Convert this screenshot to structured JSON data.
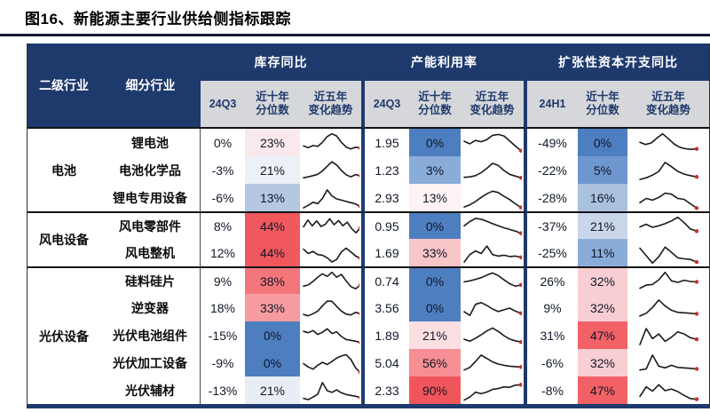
{
  "title": "图16、新能源主要行业供给侧指标跟踪",
  "colors": {
    "header_navy": "#1e3a6d",
    "subheader_bg": "#d6d7da",
    "scale_low_blue": "#4d7ec0",
    "scale_high_red": "#f0555b",
    "spark_stroke": "#1a1a1a",
    "spark_dot": "#cf2b2b",
    "rule_line": "#141a33"
  },
  "header": {
    "secondary_industry": "二级行业",
    "sub_industry": "细分行业",
    "groups": [
      {
        "label": "库存同比",
        "period": "24Q3",
        "percentile_label": "近十年\n分位数",
        "trend_label": "近五年\n变化趋势"
      },
      {
        "label": "产能利用率",
        "period": "24Q3",
        "percentile_label": "近十年\n分位数",
        "trend_label": "近五年\n变化趋势"
      },
      {
        "label": "扩张性资本开支同比",
        "period": "24H1",
        "percentile_label": "近十年\n分位数",
        "trend_label": "近五年\n变化趋势"
      }
    ]
  },
  "industries": [
    {
      "name": "电池",
      "rows": [
        {
          "name": "锂电池",
          "inv": {
            "value": "0%",
            "pct": "23%",
            "pct_color": "#f9e9ec",
            "trend": [
              0.38,
              0.3,
              0.4,
              0.36,
              0.55,
              0.82,
              0.95,
              0.85,
              0.55,
              0.33,
              0.24,
              0.32,
              0.28
            ]
          },
          "cap": {
            "value": "1.95",
            "pct": "0%",
            "pct_color": "#4d7ec0",
            "trend": [
              0.6,
              0.48,
              0.64,
              0.58,
              0.68,
              0.88,
              0.92,
              0.85,
              0.62,
              0.38,
              0.16
            ]
          },
          "capex": {
            "value": "-49%",
            "pct": "0%",
            "pct_color": "#4d7ec0",
            "trend": [
              0.55,
              0.45,
              0.52,
              0.75,
              0.95,
              0.72,
              0.48,
              0.32,
              0.25,
              0.22,
              0.24
            ]
          }
        },
        {
          "name": "电池化学品",
          "inv": {
            "value": "-3%",
            "pct": "21%",
            "pct_color": "#ecf0f7",
            "trend": [
              0.18,
              0.22,
              0.28,
              0.34,
              0.5,
              0.72,
              0.93,
              0.78,
              0.52,
              0.32,
              0.22,
              0.33,
              0.27
            ]
          },
          "cap": {
            "value": "1.23",
            "pct": "3%",
            "pct_color": "#8aacd8",
            "trend": [
              0.2,
              0.22,
              0.28,
              0.42,
              0.62,
              0.86,
              0.76,
              0.52,
              0.34,
              0.26,
              0.18
            ]
          },
          "capex": {
            "value": "-22%",
            "pct": "5%",
            "pct_color": "#6f97cf",
            "trend": [
              0.1,
              0.18,
              0.3,
              0.48,
              0.9,
              0.7,
              0.48,
              0.35,
              0.28,
              0.22
            ]
          }
        },
        {
          "name": "锂电专用设备",
          "inv": {
            "value": "-6%",
            "pct": "13%",
            "pct_color": "#b5c8e2",
            "trend": [
              0.06,
              0.18,
              0.32,
              0.26,
              0.5,
              0.9,
              0.62,
              0.48,
              0.42,
              0.36,
              0.3,
              0.24,
              0.12
            ]
          },
          "cap": {
            "value": "2.93",
            "pct": "13%",
            "pct_color": "#fdf3f4",
            "trend": [
              0.1,
              0.2,
              0.36,
              0.55,
              0.72,
              0.84,
              0.78,
              0.6,
              0.45,
              0.25,
              0.08
            ]
          },
          "capex": {
            "value": "-28%",
            "pct": "16%",
            "pct_color": "#aac1e0",
            "trend": [
              0.3,
              0.5,
              0.42,
              0.55,
              0.75,
              0.7,
              0.5,
              0.46,
              0.25,
              0.05
            ]
          }
        }
      ]
    },
    {
      "name": "风电设备",
      "rows": [
        {
          "name": "风电零部件",
          "inv": {
            "value": "8%",
            "pct": "44%",
            "pct_color": "#f1585e",
            "trend": [
              0.5,
              0.82,
              0.55,
              0.78,
              0.52,
              0.62,
              0.88,
              0.6,
              0.8,
              0.55,
              0.72,
              0.42,
              0.22,
              0.45
            ]
          },
          "cap": {
            "value": "0.95",
            "pct": "0%",
            "pct_color": "#4d7ec0",
            "trend": [
              0.55,
              0.75,
              0.9,
              0.86,
              0.76,
              0.65,
              0.55,
              0.46,
              0.38,
              0.3,
              0.2
            ]
          },
          "capex": {
            "value": "-37%",
            "pct": "21%",
            "pct_color": "#c9d6ea",
            "trend": [
              0.5,
              0.62,
              0.48,
              0.55,
              0.65,
              0.78,
              0.95,
              0.7,
              0.4,
              0.3
            ]
          }
        },
        {
          "name": "风电整机",
          "inv": {
            "value": "12%",
            "pct": "44%",
            "pct_color": "#f1585e",
            "trend": [
              0.7,
              0.5,
              0.6,
              0.45,
              0.42,
              0.3,
              0.1,
              0.22,
              0.58,
              0.75,
              0.58,
              0.38,
              0.28
            ]
          },
          "cap": {
            "value": "1.69",
            "pct": "33%",
            "pct_color": "#f8c5c9",
            "trend": [
              0.1,
              0.45,
              0.62,
              0.5,
              0.85,
              0.45,
              0.38,
              0.42,
              0.36,
              0.38,
              0.32
            ]
          },
          "capex": {
            "value": "-25%",
            "pct": "11%",
            "pct_color": "#8aacd8",
            "trend": [
              0.75,
              0.4,
              0.05,
              0.35,
              0.8,
              0.55,
              0.3,
              0.25,
              0.22,
              0.1
            ]
          }
        }
      ]
    },
    {
      "name": "光伏设备",
      "rows": [
        {
          "name": "硅料硅片",
          "inv": {
            "value": "9%",
            "pct": "38%",
            "pct_color": "#f3767b",
            "trend": [
              0.3,
              0.36,
              0.52,
              0.72,
              0.88,
              0.76,
              0.95,
              0.72,
              0.85,
              0.55,
              0.28,
              0.18,
              0.35
            ]
          },
          "cap": {
            "value": "0.74",
            "pct": "0%",
            "pct_color": "#4d7ec0",
            "trend": [
              0.5,
              0.55,
              0.62,
              0.7,
              0.82,
              0.92,
              0.8,
              0.6,
              0.42,
              0.3,
              0.36
            ]
          },
          "capex": {
            "value": "26%",
            "pct": "32%",
            "pct_color": "#f9ced2",
            "trend": [
              0.2,
              0.35,
              0.38,
              0.6,
              0.95,
              0.55,
              0.48,
              0.58,
              0.52,
              0.5
            ]
          }
        },
        {
          "name": "逆变器",
          "inv": {
            "value": "18%",
            "pct": "33%",
            "pct_color": "#f69ca1",
            "trend": [
              0.22,
              0.16,
              0.26,
              0.38,
              0.62,
              0.85,
              0.84,
              0.6,
              0.38,
              0.24,
              0.2,
              0.32,
              0.26
            ]
          },
          "cap": {
            "value": "3.56",
            "pct": "0%",
            "pct_color": "#4d7ec0",
            "trend": [
              0.35,
              0.18,
              0.7,
              0.78,
              0.64,
              0.48,
              0.36,
              0.44,
              0.52,
              0.38,
              0.28
            ]
          },
          "capex": {
            "value": "9%",
            "pct": "32%",
            "pct_color": "#f9ced2",
            "trend": [
              0.15,
              0.28,
              0.55,
              0.9,
              0.62,
              0.42,
              0.32,
              0.3,
              0.28,
              0.25
            ]
          }
        },
        {
          "name": "光伏电池组件",
          "inv": {
            "value": "-15%",
            "pct": "0%",
            "pct_color": "#4d7ec0",
            "trend": [
              0.72,
              0.66,
              0.76,
              0.58,
              0.68,
              0.84,
              0.62,
              0.7,
              0.48,
              0.34,
              0.3,
              0.26,
              0.2
            ]
          },
          "cap": {
            "value": "1.89",
            "pct": "21%",
            "pct_color": "#fbdfe2",
            "trend": [
              0.35,
              0.26,
              0.4,
              0.56,
              0.74,
              0.88,
              0.72,
              0.52,
              0.36,
              0.28,
              0.22
            ]
          },
          "capex": {
            "value": "31%",
            "pct": "47%",
            "pct_color": "#f26166",
            "trend": [
              0.1,
              0.85,
              0.38,
              0.6,
              0.25,
              0.45,
              0.7,
              0.6,
              0.42,
              0.35
            ]
          }
        },
        {
          "name": "光伏加工设备",
          "inv": {
            "value": "-9%",
            "pct": "0%",
            "pct_color": "#4d7ec0",
            "trend": [
              0.5,
              0.34,
              0.24,
              0.42,
              0.56,
              0.46,
              0.6,
              0.76,
              0.86,
              0.92,
              0.7,
              0.3,
              0.08
            ]
          },
          "cap": {
            "value": "5.04",
            "pct": "56%",
            "pct_color": "#f58f94",
            "trend": [
              0.2,
              0.32,
              0.6,
              0.9,
              0.74,
              0.58,
              0.48,
              0.42,
              0.38,
              0.36,
              0.34
            ]
          },
          "capex": {
            "value": "-6%",
            "pct": "32%",
            "pct_color": "#f9ced2",
            "trend": [
              0.2,
              0.25,
              0.9,
              0.38,
              0.3,
              0.42,
              0.32,
              0.3,
              0.28,
              0.25
            ]
          }
        },
        {
          "name": "光伏辅材",
          "inv": {
            "value": "-13%",
            "pct": "21%",
            "pct_color": "#e9eef6",
            "trend": [
              0.16,
              0.1,
              0.22,
              0.36,
              0.9,
              0.52,
              0.44,
              0.56,
              0.42,
              0.34,
              0.3,
              0.26,
              0.2
            ]
          },
          "cap": {
            "value": "2.33",
            "pct": "90%",
            "pct_color": "#f0555b",
            "trend": [
              0.08,
              0.22,
              0.45,
              0.38,
              0.46,
              0.58,
              0.62,
              0.7,
              0.68,
              0.78,
              0.8
            ]
          },
          "capex": {
            "value": "-8%",
            "pct": "47%",
            "pct_color": "#f26166",
            "trend": [
              0.25,
              0.7,
              0.5,
              0.8,
              0.52,
              0.6,
              0.48,
              0.3,
              0.15,
              0.12
            ]
          }
        }
      ]
    }
  ],
  "chart_data": {
    "type": "table",
    "title": "图16、新能源主要行业供给侧指标跟踪",
    "column_groups": [
      "库存同比",
      "产能利用率",
      "扩张性资本开支同比"
    ],
    "columns": [
      "二级行业",
      "细分行业",
      "库存同比 24Q3",
      "库存同比 近十年分位数",
      "产能利用率 24Q3",
      "产能利用率 近十年分位数",
      "扩张性资本开支同比 24H1",
      "扩张性资本开支同比 近十年分位数"
    ],
    "rows": [
      [
        "电池",
        "锂电池",
        "0%",
        "23%",
        1.95,
        "0%",
        "-49%",
        "0%"
      ],
      [
        "电池",
        "电池化学品",
        "-3%",
        "21%",
        1.23,
        "3%",
        "-22%",
        "5%"
      ],
      [
        "电池",
        "锂电专用设备",
        "-6%",
        "13%",
        2.93,
        "13%",
        "-28%",
        "16%"
      ],
      [
        "风电设备",
        "风电零部件",
        "8%",
        "44%",
        0.95,
        "0%",
        "-37%",
        "21%"
      ],
      [
        "风电设备",
        "风电整机",
        "12%",
        "44%",
        1.69,
        "33%",
        "-25%",
        "11%"
      ],
      [
        "光伏设备",
        "硅料硅片",
        "9%",
        "38%",
        0.74,
        "0%",
        "26%",
        "32%"
      ],
      [
        "光伏设备",
        "逆变器",
        "18%",
        "33%",
        3.56,
        "0%",
        "9%",
        "32%"
      ],
      [
        "光伏设备",
        "光伏电池组件",
        "-15%",
        "0%",
        1.89,
        "21%",
        "31%",
        "47%"
      ],
      [
        "光伏设备",
        "光伏加工设备",
        "-9%",
        "0%",
        5.04,
        "56%",
        "-6%",
        "32%"
      ],
      [
        "光伏设备",
        "光伏辅材",
        "-13%",
        "21%",
        2.33,
        "90%",
        "-8%",
        "47%"
      ]
    ],
    "notes": "每组另含“近五年变化趋势”迷你折线图（黑色折线、红色端点）；分位数单元格按蓝(低)→红(高)色阶着色"
  }
}
